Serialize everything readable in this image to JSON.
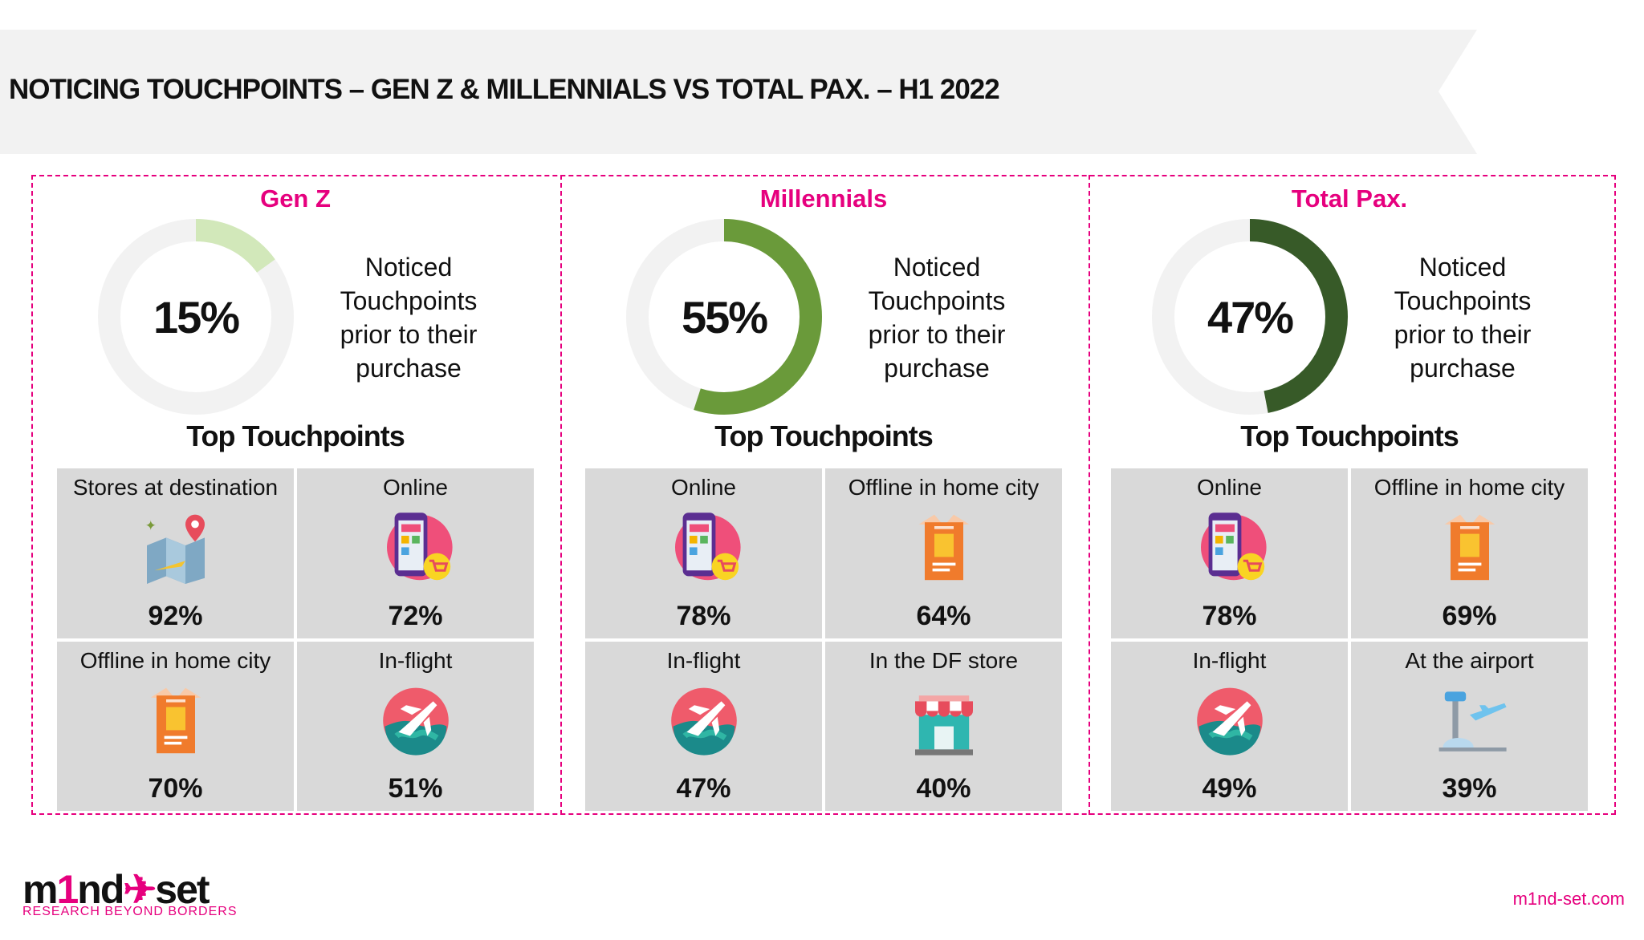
{
  "title": "NOTICING  TOUCHPOINTS – GEN Z & MILLENNIALS VS TOTAL PAX. – H1 2022",
  "colors": {
    "accent": "#e6007e",
    "track": "#f2f2f2",
    "tile": "#d9d9d9",
    "banner": "#f2f2f2"
  },
  "panels": [
    {
      "title": "Gen Z",
      "percent": "15%",
      "value": 15,
      "color": "#d2e8ba",
      "noticed": [
        "Noticed",
        "Touchpoints",
        "prior to their",
        "purchase"
      ],
      "top_label": "Top Touchpoints",
      "tiles": [
        {
          "label": "Stores at destination",
          "value": "92%",
          "icon": "map-pin-icon"
        },
        {
          "label": "Online",
          "value": "72%",
          "icon": "phone-shopping-icon"
        },
        {
          "label": "Offline in home city",
          "value": "70%",
          "icon": "shopping-bag-icon"
        },
        {
          "label": "In-flight",
          "value": "51%",
          "icon": "plane-globe-icon"
        }
      ]
    },
    {
      "title": "Millennials",
      "percent": "55%",
      "value": 55,
      "color": "#6a9a3a",
      "noticed": [
        "Noticed",
        "Touchpoints",
        "prior to their",
        "purchase"
      ],
      "top_label": "Top Touchpoints",
      "tiles": [
        {
          "label": "Online",
          "value": "78%",
          "icon": "phone-shopping-icon"
        },
        {
          "label": "Offline in home city",
          "value": "64%",
          "icon": "shopping-bag-icon"
        },
        {
          "label": "In-flight",
          "value": "47%",
          "icon": "plane-globe-icon"
        },
        {
          "label": "In the DF store",
          "value": "40%",
          "icon": "store-icon"
        }
      ]
    },
    {
      "title": "Total Pax.",
      "percent": "47%",
      "value": 47,
      "color": "#375a28",
      "noticed": [
        "Noticed",
        "Touchpoints",
        "prior to their",
        "purchase"
      ],
      "top_label": "Top Touchpoints",
      "tiles": [
        {
          "label": "Online",
          "value": "78%",
          "icon": "phone-shopping-icon"
        },
        {
          "label": "Offline in home city",
          "value": "69%",
          "icon": "shopping-bag-icon"
        },
        {
          "label": "In-flight",
          "value": "49%",
          "icon": "plane-globe-icon"
        },
        {
          "label": "At the airport",
          "value": "39%",
          "icon": "airport-icon"
        }
      ]
    }
  ],
  "footer": {
    "logo_word": "m1nd-set",
    "tagline": "RESEARCH BEYOND BORDERS",
    "site": "m1nd-set.com"
  }
}
